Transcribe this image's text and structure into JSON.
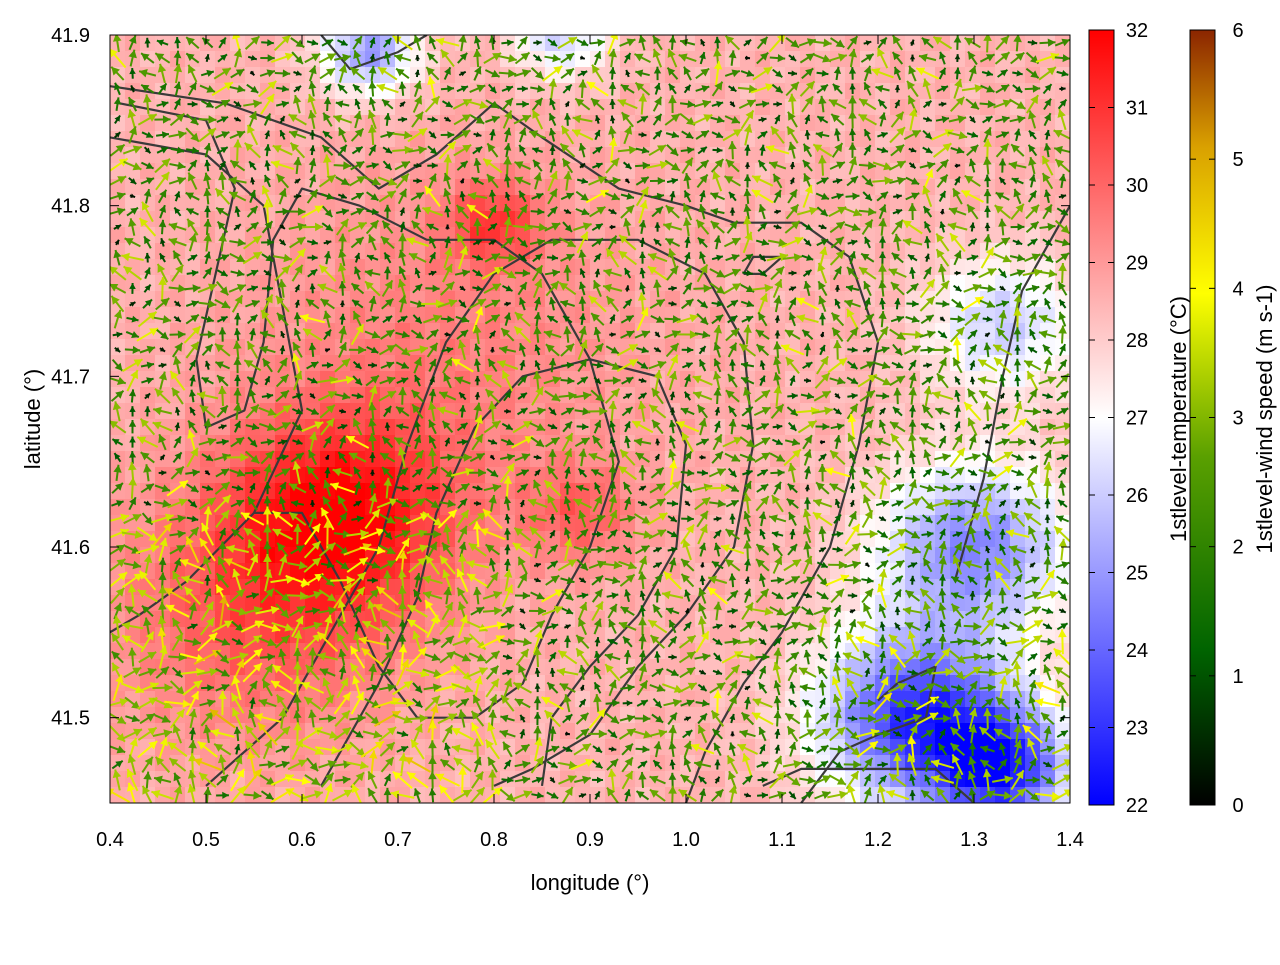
{
  "chart_data": {
    "type": "heatmap",
    "title": "",
    "xlabel": "longitude (°)",
    "ylabel": "latitude (°)",
    "xlim": [
      0.4,
      1.4
    ],
    "ylim": [
      41.45,
      41.9
    ],
    "xticks": [
      "0.4",
      "0.5",
      "0.6",
      "0.7",
      "0.8",
      "0.9",
      "1.0",
      "1.1",
      "1.2",
      "1.3",
      "1.4"
    ],
    "yticks": [
      "41.5",
      "41.6",
      "41.7",
      "41.8",
      "41.9"
    ],
    "temperature": {
      "label": "1stlevel-temperature (°C)",
      "range": [
        22,
        32
      ],
      "ticks": [
        "22",
        "23",
        "24",
        "25",
        "26",
        "27",
        "28",
        "29",
        "30",
        "31",
        "32"
      ],
      "colors": [
        "#0000ff",
        "#ffffff",
        "#ff0000"
      ],
      "hotspots": [
        {
          "lon": 0.64,
          "lat": 41.62,
          "value": 31.5,
          "spread": 0.12
        },
        {
          "lon": 0.55,
          "lat": 41.56,
          "value": 30.2,
          "spread": 0.15
        },
        {
          "lon": 0.8,
          "lat": 41.79,
          "value": 30.5,
          "spread": 0.05
        },
        {
          "lon": 0.89,
          "lat": 41.62,
          "value": 30.0,
          "spread": 0.06
        },
        {
          "lon": 0.75,
          "lat": 41.72,
          "value": 29.5,
          "spread": 0.2
        },
        {
          "lon": 1.24,
          "lat": 41.5,
          "value": 23.0,
          "spread": 0.1
        },
        {
          "lon": 1.33,
          "lat": 41.47,
          "value": 23.3,
          "spread": 0.07
        },
        {
          "lon": 1.3,
          "lat": 41.6,
          "value": 24.6,
          "spread": 0.1
        },
        {
          "lon": 0.67,
          "lat": 41.89,
          "value": 25.0,
          "spread": 0.05
        },
        {
          "lon": 0.87,
          "lat": 41.9,
          "value": 26.0,
          "spread": 0.05
        },
        {
          "lon": 1.33,
          "lat": 41.73,
          "value": 26.0,
          "spread": 0.08
        }
      ],
      "base": 28.5
    },
    "wind_speed": {
      "label": "1stlevel-wind speed (m s-1)",
      "range": [
        0,
        6
      ],
      "ticks": [
        "0",
        "1",
        "2",
        "3",
        "4",
        "5",
        "6"
      ],
      "colors": [
        "#000000",
        "#006400",
        "#5aa000",
        "#ffff00",
        "#d9a000",
        "#8b2500"
      ]
    },
    "wind_grid": {
      "nx": 64,
      "ny": 50,
      "prevailing_direction_deg": 60,
      "mean_speed": 1.9
    },
    "contours": [
      [
        [
          0.4,
          41.87
        ],
        [
          0.52,
          41.86
        ],
        [
          0.62,
          41.84
        ],
        [
          0.68,
          41.81
        ],
        [
          0.74,
          41.83
        ],
        [
          0.8,
          41.86
        ],
        [
          0.85,
          41.84
        ],
        [
          0.93,
          41.81
        ],
        [
          1.0,
          41.8
        ],
        [
          1.05,
          41.79
        ],
        [
          1.12,
          41.79
        ],
        [
          1.17,
          41.77
        ],
        [
          1.2,
          41.72
        ],
        [
          1.18,
          41.66
        ],
        [
          1.15,
          41.6
        ],
        [
          1.1,
          41.55
        ],
        [
          1.06,
          41.52
        ],
        [
          1.02,
          41.48
        ],
        [
          1.0,
          41.45
        ]
      ],
      [
        [
          0.4,
          41.84
        ],
        [
          0.5,
          41.83
        ],
        [
          0.56,
          41.8
        ],
        [
          0.58,
          41.74
        ],
        [
          0.6,
          41.68
        ],
        [
          0.55,
          41.62
        ],
        [
          0.48,
          41.58
        ],
        [
          0.43,
          41.56
        ],
        [
          0.4,
          41.55
        ]
      ],
      [
        [
          0.41,
          41.86
        ],
        [
          0.5,
          41.85
        ],
        [
          0.53,
          41.81
        ],
        [
          0.51,
          41.76
        ],
        [
          0.49,
          41.71
        ],
        [
          0.5,
          41.67
        ],
        [
          0.54,
          41.68
        ],
        [
          0.56,
          41.72
        ],
        [
          0.57,
          41.78
        ],
        [
          0.6,
          41.81
        ],
        [
          0.66,
          41.8
        ],
        [
          0.73,
          41.78
        ],
        [
          0.8,
          41.78
        ],
        [
          0.85,
          41.76
        ],
        [
          0.9,
          41.71
        ],
        [
          0.93,
          41.65
        ],
        [
          0.9,
          41.6
        ],
        [
          0.86,
          41.56
        ],
        [
          0.83,
          41.52
        ],
        [
          0.78,
          41.5
        ],
        [
          0.72,
          41.5
        ],
        [
          0.68,
          41.53
        ],
        [
          0.64,
          41.58
        ],
        [
          0.6,
          41.62
        ],
        [
          0.55,
          41.62
        ]
      ],
      [
        [
          0.5,
          41.46
        ],
        [
          0.58,
          41.5
        ],
        [
          0.64,
          41.56
        ],
        [
          0.68,
          41.6
        ],
        [
          0.71,
          41.66
        ],
        [
          0.75,
          41.72
        ],
        [
          0.8,
          41.76
        ],
        [
          0.86,
          41.78
        ],
        [
          0.95,
          41.78
        ],
        [
          1.02,
          41.76
        ],
        [
          1.06,
          41.72
        ],
        [
          1.07,
          41.66
        ],
        [
          1.05,
          41.6
        ],
        [
          1.0,
          41.56
        ],
        [
          0.95,
          41.53
        ],
        [
          0.9,
          41.49
        ],
        [
          0.84,
          41.47
        ],
        [
          0.8,
          41.46
        ]
      ],
      [
        [
          0.62,
          41.46
        ],
        [
          0.68,
          41.52
        ],
        [
          0.72,
          41.57
        ],
        [
          0.74,
          41.62
        ],
        [
          0.78,
          41.67
        ],
        [
          0.83,
          41.7
        ],
        [
          0.9,
          41.71
        ],
        [
          0.97,
          41.7
        ],
        [
          1.0,
          41.66
        ],
        [
          0.99,
          41.6
        ],
        [
          0.95,
          41.56
        ],
        [
          0.9,
          41.53
        ],
        [
          0.86,
          41.5
        ],
        [
          0.85,
          41.46
        ]
      ],
      [
        [
          1.12,
          41.45
        ],
        [
          1.16,
          41.48
        ],
        [
          1.2,
          41.49
        ],
        [
          1.25,
          41.5
        ],
        [
          1.26,
          41.53
        ],
        [
          1.22,
          41.52
        ],
        [
          1.2,
          41.51
        ]
      ],
      [
        [
          1.08,
          41.46
        ],
        [
          1.12,
          41.47
        ],
        [
          1.18,
          41.47
        ],
        [
          1.26,
          41.47
        ],
        [
          1.3,
          41.45
        ]
      ],
      [
        [
          1.28,
          41.58
        ],
        [
          1.31,
          41.64
        ],
        [
          1.33,
          41.7
        ],
        [
          1.35,
          41.75
        ],
        [
          1.38,
          41.78
        ],
        [
          1.4,
          41.8
        ]
      ],
      [
        [
          0.62,
          41.9
        ],
        [
          0.65,
          41.88
        ],
        [
          0.7,
          41.89
        ],
        [
          0.73,
          41.9
        ]
      ],
      [
        [
          1.06,
          41.76
        ],
        [
          1.08,
          41.76
        ],
        [
          1.1,
          41.77
        ],
        [
          1.07,
          41.77
        ],
        [
          1.06,
          41.76
        ]
      ]
    ]
  }
}
